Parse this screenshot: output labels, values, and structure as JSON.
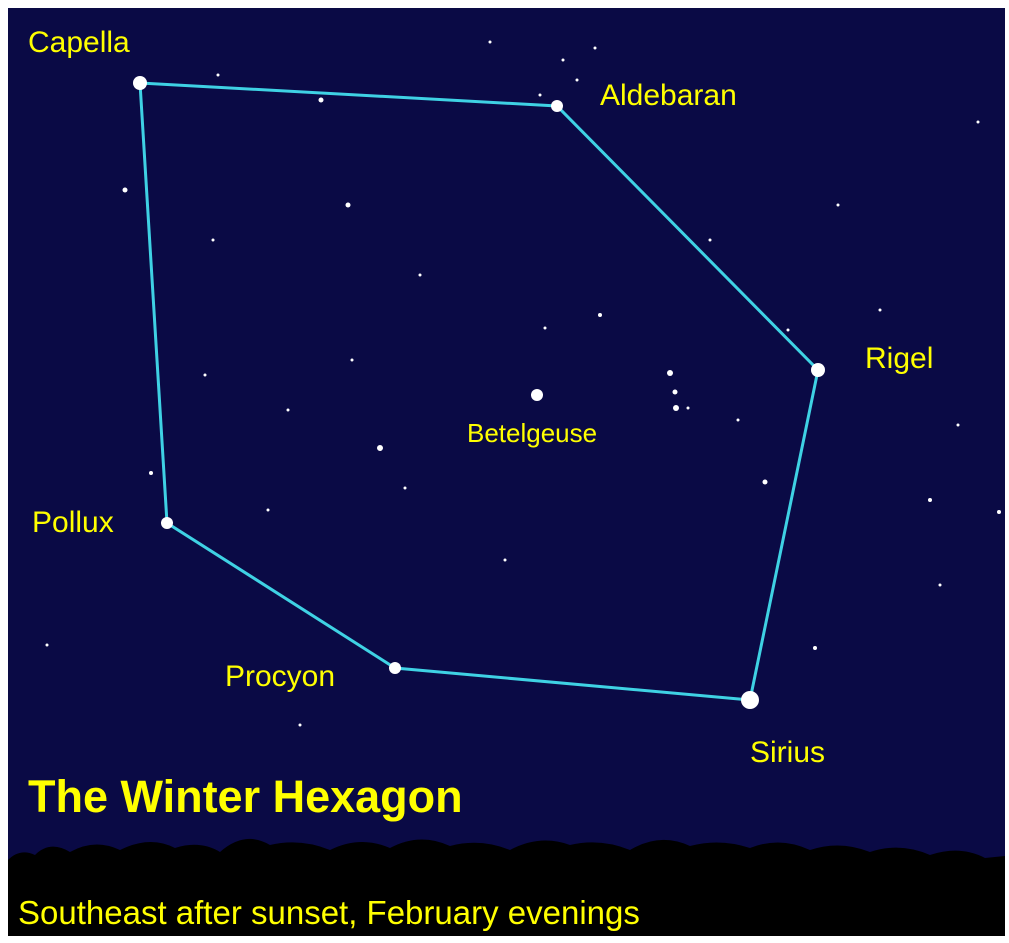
{
  "title": "The Winter Hexagon",
  "subtitle": "Southeast after sunset, February evenings",
  "stars": [
    {
      "label": "Capella"
    },
    {
      "label": "Aldebaran"
    },
    {
      "label": "Rigel"
    },
    {
      "label": "Sirius"
    },
    {
      "label": "Procyon"
    },
    {
      "label": "Pollux"
    },
    {
      "label": "Betelgeuse"
    }
  ]
}
